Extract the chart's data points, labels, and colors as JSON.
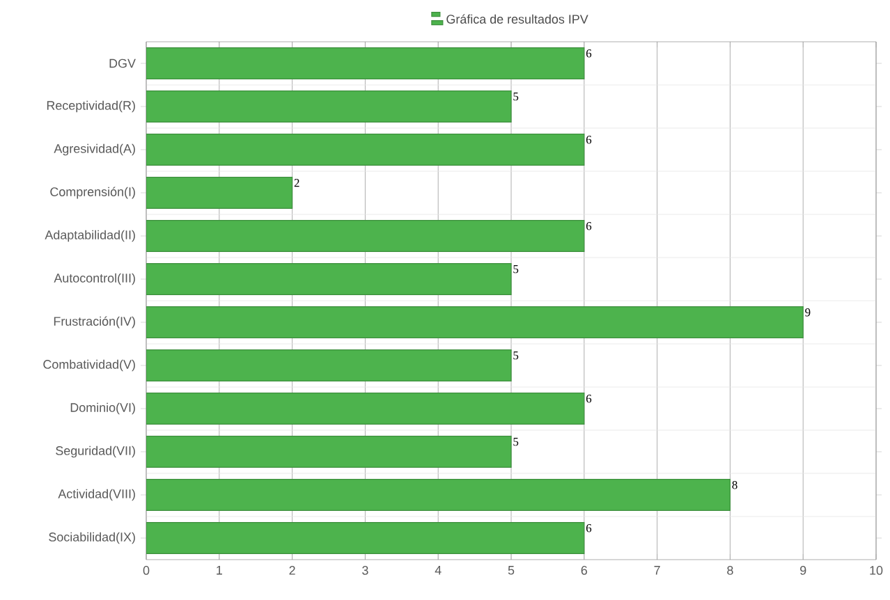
{
  "chart_data": {
    "type": "bar",
    "orientation": "horizontal",
    "categories": [
      "DGV",
      "Receptividad(R)",
      "Agresividad(A)",
      "Comprensión(I)",
      "Adaptabilidad(II)",
      "Autocontrol(III)",
      "Frustración(IV)",
      "Combatividad(V)",
      "Dominio(VI)",
      "Seguridad(VII)",
      "Actividad(VIII)",
      "Sociabilidad(IX)"
    ],
    "series": [
      {
        "name": "Gráfica de resultados IPV",
        "color": "#4db34d",
        "values": [
          6,
          5,
          6,
          2,
          6,
          5,
          9,
          5,
          6,
          5,
          8,
          6
        ]
      }
    ],
    "xlim": [
      0,
      10
    ],
    "xticks": [
      0,
      1,
      2,
      3,
      4,
      5,
      6,
      7,
      8,
      9,
      10
    ],
    "grid": true,
    "legend": "top",
    "data_labels": true
  }
}
